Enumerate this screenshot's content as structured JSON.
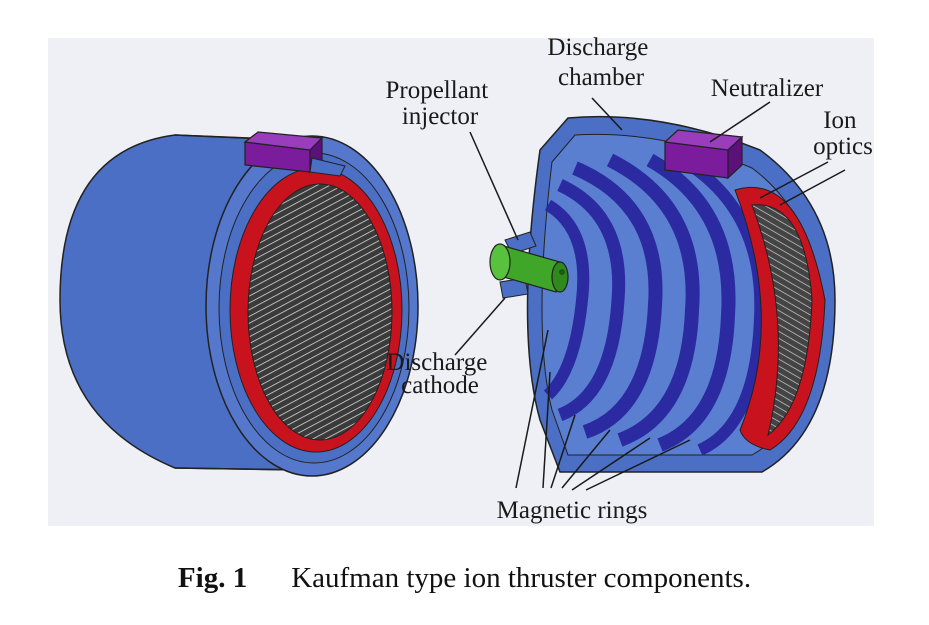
{
  "labels": {
    "discharge_chamber": [
      "Discharge",
      "chamber"
    ],
    "propellant_injector": [
      "Propellant",
      "injector"
    ],
    "neutralizer": "Neutralizer",
    "ion_optics": [
      "Ion",
      "optics"
    ],
    "discharge_cathode": [
      "Discharge",
      "cathode"
    ],
    "magnetic_rings": "Magnetic rings"
  },
  "caption": {
    "number": "Fig. 1",
    "text": "Kaufman type ion thruster components."
  },
  "colors": {
    "body_blue": "#4a6fc4",
    "ring_dark_blue": "#2b2aa0",
    "grid_red": "#c8121e",
    "neutralizer_purple": "#7a1c9c",
    "cathode_green": "#3fa62a",
    "background_panel": "#eef0f6"
  }
}
